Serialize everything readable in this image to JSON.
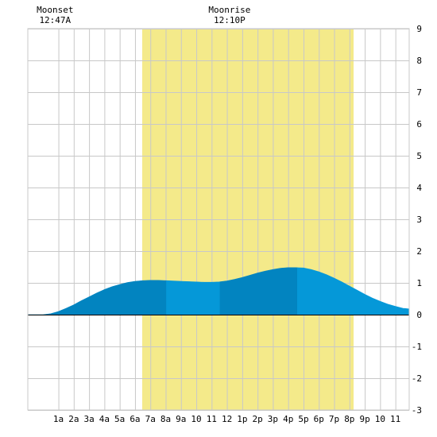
{
  "chart_data": {
    "type": "area",
    "x_unit": "hour",
    "xlim": [
      -1,
      23.9
    ],
    "ylim": [
      -3,
      9
    ],
    "y_ticks": [
      -3,
      -2,
      -1,
      0,
      1,
      2,
      3,
      4,
      5,
      6,
      7,
      8,
      9
    ],
    "x_ticks": [
      {
        "hour": 1,
        "label": "1a"
      },
      {
        "hour": 2,
        "label": "2a"
      },
      {
        "hour": 3,
        "label": "3a"
      },
      {
        "hour": 4,
        "label": "4a"
      },
      {
        "hour": 5,
        "label": "5a"
      },
      {
        "hour": 6,
        "label": "6a"
      },
      {
        "hour": 7,
        "label": "7a"
      },
      {
        "hour": 8,
        "label": "8a"
      },
      {
        "hour": 9,
        "label": "9a"
      },
      {
        "hour": 10,
        "label": "10"
      },
      {
        "hour": 11,
        "label": "11"
      },
      {
        "hour": 12,
        "label": "12"
      },
      {
        "hour": 13,
        "label": "1p"
      },
      {
        "hour": 14,
        "label": "2p"
      },
      {
        "hour": 15,
        "label": "3p"
      },
      {
        "hour": 16,
        "label": "4p"
      },
      {
        "hour": 17,
        "label": "5p"
      },
      {
        "hour": 18,
        "label": "6p"
      },
      {
        "hour": 19,
        "label": "7p"
      },
      {
        "hour": 20,
        "label": "8p"
      },
      {
        "hour": 21,
        "label": "9p"
      },
      {
        "hour": 22,
        "label": "10"
      },
      {
        "hour": 23,
        "label": "11"
      }
    ],
    "grid": true,
    "daylight": {
      "start": 6.47,
      "end": 20.27,
      "color": "#f4ea8a"
    },
    "moon_events": [
      {
        "name": "Moonset",
        "time": "12:47A",
        "hour": 0.78
      },
      {
        "name": "Moonrise",
        "time": "12:10P",
        "hour": 12.17
      }
    ],
    "tide_series": {
      "x": [
        -1,
        -0.5,
        0,
        0.5,
        1,
        1.5,
        2,
        2.5,
        3,
        3.5,
        4,
        4.5,
        5,
        5.5,
        6,
        6.5,
        7,
        7.5,
        8,
        8.5,
        9,
        9.5,
        10,
        10.5,
        11,
        11.5,
        12,
        12.5,
        13,
        13.5,
        14,
        14.5,
        15,
        15.5,
        16,
        16.5,
        17,
        17.5,
        18,
        18.5,
        19,
        19.5,
        20,
        20.5,
        21,
        21.5,
        22,
        22.5,
        23,
        23.5,
        23.9
      ],
      "y": [
        0.0,
        0.0,
        0.0,
        0.03,
        0.1,
        0.2,
        0.31,
        0.44,
        0.56,
        0.68,
        0.79,
        0.88,
        0.95,
        1.01,
        1.05,
        1.07,
        1.08,
        1.08,
        1.07,
        1.06,
        1.05,
        1.04,
        1.03,
        1.02,
        1.02,
        1.03,
        1.06,
        1.11,
        1.17,
        1.24,
        1.31,
        1.37,
        1.42,
        1.46,
        1.48,
        1.48,
        1.47,
        1.42,
        1.35,
        1.26,
        1.15,
        1.03,
        0.9,
        0.77,
        0.64,
        0.52,
        0.42,
        0.33,
        0.26,
        0.2,
        0.18
      ]
    },
    "tide_segments": [
      {
        "start": -1,
        "end": 8.05,
        "color": "#0284c0"
      },
      {
        "start": 8.05,
        "end": 11.55,
        "color": "#0598d8"
      },
      {
        "start": 11.55,
        "end": 16.6,
        "color": "#0284c0"
      },
      {
        "start": 16.6,
        "end": 23.9,
        "color": "#0598d8"
      }
    ],
    "colors": {
      "grid": "#c8c8c8",
      "baseline": "#000000",
      "axis_border": "#808080"
    }
  }
}
